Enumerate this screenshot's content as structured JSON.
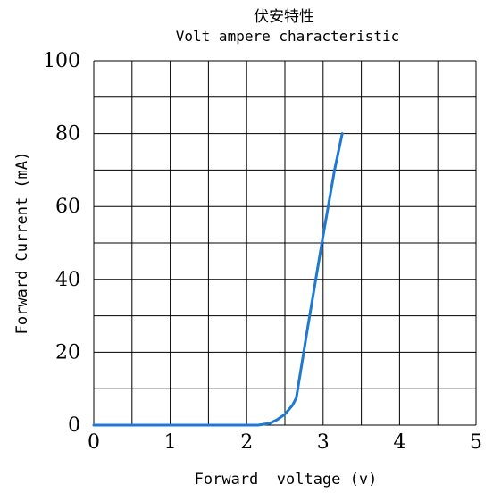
{
  "chart_data": {
    "type": "line",
    "title": "伏安特性",
    "subtitle": "Volt ampere characteristic",
    "xlabel": "Forward  voltage (v)",
    "ylabel": "Forward Current (mA)",
    "xlim": [
      0,
      5
    ],
    "ylim": [
      0,
      100
    ],
    "grid": true,
    "x_ticks": [
      "0",
      "1",
      "2",
      "3",
      "4",
      "5"
    ],
    "y_ticks": [
      "0",
      "20",
      "40",
      "60",
      "80",
      "100"
    ],
    "series": [
      {
        "color": "#1f78d1",
        "points": [
          [
            0.0,
            0.0
          ],
          [
            0.5,
            0.0
          ],
          [
            1.0,
            0.0
          ],
          [
            1.5,
            0.0
          ],
          [
            2.0,
            0.0
          ],
          [
            2.15,
            0.0
          ],
          [
            2.3,
            0.5
          ],
          [
            2.4,
            1.5
          ],
          [
            2.5,
            3.0
          ],
          [
            2.6,
            5.5
          ],
          [
            2.65,
            7.5
          ],
          [
            2.8,
            27.0
          ],
          [
            3.0,
            52.0
          ],
          [
            3.15,
            70.0
          ],
          [
            3.25,
            80.0
          ]
        ]
      }
    ]
  }
}
